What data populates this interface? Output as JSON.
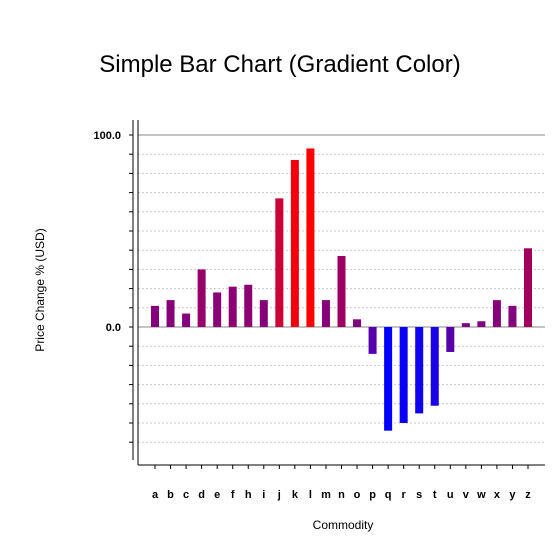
{
  "chart_data": {
    "type": "bar",
    "title": "Simple Bar Chart (Gradient Color)",
    "xlabel": "Commodity",
    "ylabel": "Price Change % (USD)",
    "categories": [
      "a",
      "b",
      "c",
      "d",
      "e",
      "f",
      "h",
      "i",
      "j",
      "k",
      "l",
      "m",
      "n",
      "o",
      "p",
      "q",
      "r",
      "s",
      "t",
      "u",
      "v",
      "w",
      "x",
      "y",
      "z"
    ],
    "values": [
      11,
      14,
      7,
      30,
      18,
      21,
      22,
      14,
      67,
      87,
      93,
      14,
      37,
      4,
      -14,
      -54,
      -50,
      -45,
      -41,
      -13,
      2,
      3,
      14,
      11,
      41
    ],
    "ylim": [
      -70,
      100
    ],
    "yticks": [
      {
        "value": 100,
        "label": "100.0"
      },
      {
        "value": 0,
        "label": "0.0"
      }
    ],
    "grid": true,
    "colors": {
      "positive_low": "#800080",
      "positive_high": "#ff0000",
      "negative_high": "#0000ff",
      "zero_line": "#888888",
      "grid": "#c8c8c8"
    }
  }
}
